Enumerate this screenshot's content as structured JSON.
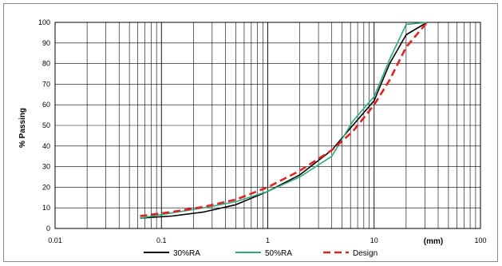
{
  "chart_data": {
    "type": "line",
    "title": "",
    "xlabel": "",
    "x_unit_label": "(mm)",
    "ylabel": "% Passing",
    "x_scale": "log",
    "xlim": [
      0.01,
      100
    ],
    "ylim": [
      0,
      100
    ],
    "x_ticks": [
      0.01,
      0.1,
      1,
      10,
      100
    ],
    "x_tick_labels": [
      "0.01",
      "0.1",
      "1",
      "10",
      "100"
    ],
    "y_ticks": [
      0,
      10,
      20,
      30,
      40,
      50,
      60,
      70,
      80,
      90,
      100
    ],
    "y_tick_labels": [
      "0",
      "10",
      "20",
      "30",
      "40",
      "50",
      "60",
      "70",
      "80",
      "90",
      "100"
    ],
    "grid": true,
    "legend_position": "bottom",
    "series": [
      {
        "name": "30%RA",
        "color": "#000000",
        "style": "solid",
        "points": [
          [
            0.063,
            5
          ],
          [
            0.125,
            6
          ],
          [
            0.25,
            8
          ],
          [
            0.5,
            11.5
          ],
          [
            1,
            18
          ],
          [
            2,
            26
          ],
          [
            4,
            38
          ],
          [
            6.3,
            50
          ],
          [
            10,
            62
          ],
          [
            14,
            80
          ],
          [
            20,
            94
          ],
          [
            31.5,
            100
          ]
        ]
      },
      {
        "name": "50%RA",
        "color": "#2eaa78",
        "style": "solid",
        "points": [
          [
            0.063,
            5
          ],
          [
            0.125,
            7.5
          ],
          [
            0.25,
            10
          ],
          [
            0.5,
            13
          ],
          [
            1,
            18
          ],
          [
            2,
            25
          ],
          [
            4,
            35
          ],
          [
            6.3,
            52
          ],
          [
            10,
            64
          ],
          [
            14,
            82
          ],
          [
            20,
            99
          ],
          [
            31.5,
            100
          ]
        ]
      },
      {
        "name": "Design",
        "color": "#e02424",
        "style": "dashed",
        "points": [
          [
            0.063,
            6
          ],
          [
            0.125,
            8
          ],
          [
            0.25,
            10.5
          ],
          [
            0.5,
            14
          ],
          [
            1,
            20
          ],
          [
            2,
            28
          ],
          [
            4,
            38
          ],
          [
            6.3,
            47
          ],
          [
            10,
            60
          ],
          [
            14,
            72
          ],
          [
            20,
            88
          ],
          [
            31.5,
            100
          ]
        ]
      }
    ]
  }
}
